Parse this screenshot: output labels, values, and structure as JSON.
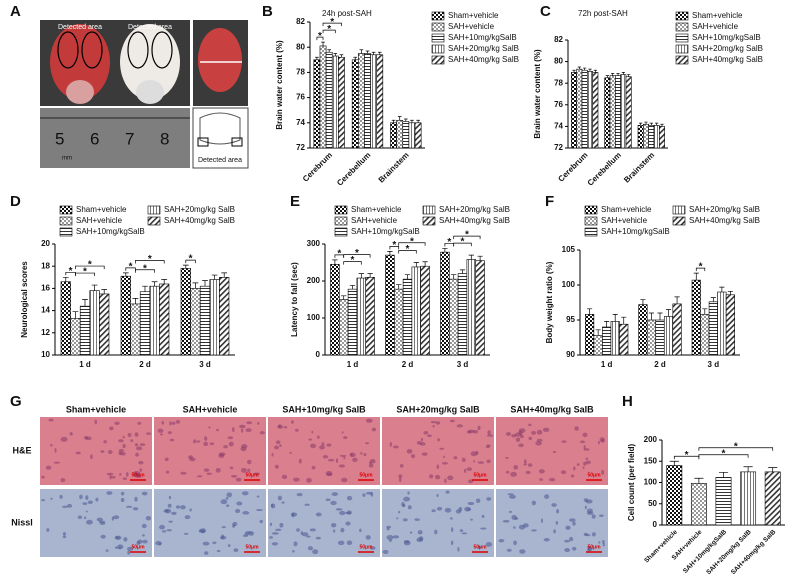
{
  "panel_a": {
    "label": "A",
    "detected_area_labels": [
      "Detected area",
      "Detected area",
      "Detected area"
    ],
    "ruler": [
      5,
      6,
      7,
      8
    ],
    "unit": "mm"
  },
  "panel_g": {
    "label": "G",
    "columns": [
      "Sham+vehicle",
      "SAH+vehicle",
      "SAH+10mg/kg SalB",
      "SAH+20mg/kg SalB",
      "SAH+40mg/kg SalB"
    ],
    "rows": [
      "H&E",
      "Nissl"
    ],
    "scale_bar": "50μm"
  },
  "chart_data": [
    {
      "type": "bar",
      "panel": "B",
      "title": "24h post-SAH",
      "y_label": "Brain water content (%)",
      "categories": [
        "Cerebrum",
        "Cerebellum",
        "Brainstem"
      ],
      "series": [
        {
          "name": "Sham+vehicle",
          "pattern": "checker-dark",
          "values": [
            79.0,
            79.0,
            74.0
          ],
          "errors": [
            0.2,
            0.2,
            0.2
          ]
        },
        {
          "name": "SAH+vehicle",
          "pattern": "checker-light",
          "values": [
            80.1,
            79.5,
            74.2
          ],
          "errors": [
            0.3,
            0.3,
            0.3
          ]
        },
        {
          "name": "SAH+10mg/kgSalB",
          "pattern": "hstripe",
          "values": [
            79.6,
            79.5,
            74.1
          ],
          "errors": [
            0.2,
            0.2,
            0.2
          ]
        },
        {
          "name": "SAH+20mg/kg SalB",
          "pattern": "vstripe",
          "values": [
            79.3,
            79.4,
            74.0
          ],
          "errors": [
            0.2,
            0.2,
            0.2
          ]
        },
        {
          "name": "SAH+40mg/kg SalB",
          "pattern": "diagonal",
          "values": [
            79.2,
            79.4,
            74.0
          ],
          "errors": [
            0.2,
            0.2,
            0.2
          ]
        }
      ],
      "ylim": [
        72,
        82
      ],
      "yticks": [
        72,
        74,
        76,
        78,
        80,
        82
      ],
      "comparisons": [
        {
          "label": "*",
          "category": "Cerebrum",
          "between": [
            "Sham+vehicle",
            "SAH+vehicle"
          ]
        },
        {
          "label": "*",
          "category": "Cerebrum",
          "between": [
            "SAH+vehicle",
            "SAH+20mg/kg SalB"
          ]
        },
        {
          "label": "*",
          "category": "Cerebrum",
          "between": [
            "SAH+vehicle",
            "SAH+40mg/kg SalB"
          ]
        }
      ]
    },
    {
      "type": "bar",
      "panel": "C",
      "title": "72h post-SAH",
      "y_label": "Brain water content (%)",
      "categories": [
        "Cerebrum",
        "Cerebellum",
        "Brainstem"
      ],
      "series": [
        {
          "name": "Sham+vehicle",
          "pattern": "checker-dark",
          "values": [
            79.0,
            78.5,
            74.1
          ],
          "errors": [
            0.2,
            0.2,
            0.2
          ]
        },
        {
          "name": "SAH+vehicle",
          "pattern": "checker-light",
          "values": [
            79.3,
            78.7,
            74.2
          ],
          "errors": [
            0.2,
            0.2,
            0.2
          ]
        },
        {
          "name": "SAH+10mg/kgSalB",
          "pattern": "hstripe",
          "values": [
            79.2,
            78.7,
            74.1
          ],
          "errors": [
            0.2,
            0.2,
            0.2
          ]
        },
        {
          "name": "SAH+20mg/kg SalB",
          "pattern": "vstripe",
          "values": [
            79.1,
            78.8,
            74.1
          ],
          "errors": [
            0.2,
            0.2,
            0.2
          ]
        },
        {
          "name": "SAH+40mg/kg SalB",
          "pattern": "diagonal",
          "values": [
            79.0,
            78.6,
            74.0
          ],
          "errors": [
            0.2,
            0.2,
            0.2
          ]
        }
      ],
      "ylim": [
        72,
        82
      ],
      "yticks": [
        72,
        74,
        76,
        78,
        80,
        82
      ],
      "comparisons": []
    },
    {
      "type": "bar",
      "panel": "D",
      "y_label": "Neurological scores",
      "categories": [
        "1 d",
        "2 d",
        "3 d"
      ],
      "series": [
        {
          "name": "Sham+vehicle",
          "pattern": "checker-dark",
          "values": [
            16.6,
            17.1,
            17.8
          ],
          "errors": [
            0.4,
            0.3,
            0.3
          ]
        },
        {
          "name": "SAH+vehicle",
          "pattern": "checker-light",
          "values": [
            13.3,
            14.6,
            16.0
          ],
          "errors": [
            0.6,
            0.5,
            0.5
          ]
        },
        {
          "name": "SAH+10mg/kgSalB",
          "pattern": "hstripe",
          "values": [
            14.4,
            15.7,
            16.2
          ],
          "errors": [
            0.6,
            0.5,
            0.5
          ]
        },
        {
          "name": "SAH+20mg/kg SalB",
          "pattern": "vstripe",
          "values": [
            15.8,
            16.2,
            16.8
          ],
          "errors": [
            0.5,
            0.4,
            0.4
          ]
        },
        {
          "name": "SAH+40mg/kg SalB",
          "pattern": "diagonal",
          "values": [
            15.5,
            16.4,
            17.0
          ],
          "errors": [
            0.4,
            0.4,
            0.4
          ]
        }
      ],
      "ylim": [
        10,
        20
      ],
      "yticks": [
        10,
        12,
        14,
        16,
        18,
        20
      ],
      "comparisons": [
        {
          "label": "*",
          "category": "1 d",
          "between": [
            "Sham+vehicle",
            "SAH+vehicle"
          ]
        },
        {
          "label": "*",
          "category": "1 d",
          "between": [
            "SAH+vehicle",
            "SAH+20mg/kg SalB"
          ]
        },
        {
          "label": "*",
          "category": "1 d",
          "between": [
            "SAH+vehicle",
            "SAH+40mg/kg SalB"
          ]
        },
        {
          "label": "*",
          "category": "2 d",
          "between": [
            "Sham+vehicle",
            "SAH+vehicle"
          ]
        },
        {
          "label": "*",
          "category": "2 d",
          "between": [
            "SAH+vehicle",
            "SAH+20mg/kg SalB"
          ]
        },
        {
          "label": "*",
          "category": "2 d",
          "between": [
            "SAH+vehicle",
            "SAH+40mg/kg SalB"
          ]
        },
        {
          "label": "*",
          "category": "3 d",
          "between": [
            "Sham+vehicle",
            "SAH+vehicle"
          ]
        }
      ]
    },
    {
      "type": "bar",
      "panel": "E",
      "y_label": "Latency to fall (sec)",
      "categories": [
        "1 d",
        "2 d",
        "3 d"
      ],
      "series": [
        {
          "name": "Sham+vehicle",
          "pattern": "checker-dark",
          "values": [
            245,
            270,
            278
          ],
          "errors": [
            12,
            10,
            10
          ]
        },
        {
          "name": "SAH+vehicle",
          "pattern": "checker-light",
          "values": [
            150,
            178,
            205
          ],
          "errors": [
            10,
            12,
            12
          ]
        },
        {
          "name": "SAH+10mg/kgSalB",
          "pattern": "hstripe",
          "values": [
            178,
            205,
            220
          ],
          "errors": [
            10,
            12,
            10
          ]
        },
        {
          "name": "SAH+20mg/kg SalB",
          "pattern": "vstripe",
          "values": [
            208,
            238,
            258
          ],
          "errors": [
            12,
            12,
            12
          ]
        },
        {
          "name": "SAH+40mg/kg SalB",
          "pattern": "diagonal",
          "values": [
            210,
            240,
            255
          ],
          "errors": [
            10,
            12,
            12
          ]
        }
      ],
      "ylim": [
        0,
        300
      ],
      "yticks": [
        0,
        100,
        200,
        300
      ],
      "comparisons": [
        {
          "label": "*",
          "category": "1 d",
          "between": [
            "Sham+vehicle",
            "SAH+vehicle"
          ]
        },
        {
          "label": "*",
          "category": "1 d",
          "between": [
            "SAH+vehicle",
            "SAH+20mg/kg SalB"
          ]
        },
        {
          "label": "*",
          "category": "1 d",
          "between": [
            "SAH+vehicle",
            "SAH+40mg/kg SalB"
          ]
        },
        {
          "label": "*",
          "category": "2 d",
          "between": [
            "Sham+vehicle",
            "SAH+vehicle"
          ]
        },
        {
          "label": "*",
          "category": "2 d",
          "between": [
            "SAH+vehicle",
            "SAH+20mg/kg SalB"
          ]
        },
        {
          "label": "*",
          "category": "2 d",
          "between": [
            "SAH+vehicle",
            "SAH+40mg/kg SalB"
          ]
        },
        {
          "label": "*",
          "category": "3 d",
          "between": [
            "Sham+vehicle",
            "SAH+vehicle"
          ]
        },
        {
          "label": "*",
          "category": "3 d",
          "between": [
            "SAH+vehicle",
            "SAH+20mg/kg SalB"
          ]
        },
        {
          "label": "*",
          "category": "3 d",
          "between": [
            "SAH+vehicle",
            "SAH+40mg/kg SalB"
          ]
        }
      ]
    },
    {
      "type": "bar",
      "panel": "F",
      "y_label": "Body weight ratio (%)",
      "categories": [
        "1 d",
        "2 d",
        "3 d"
      ],
      "series": [
        {
          "name": "Sham+vehicle",
          "pattern": "checker-dark",
          "values": [
            95.8,
            97.2,
            100.7
          ],
          "errors": [
            0.8,
            0.7,
            1.0
          ]
        },
        {
          "name": "SAH+vehicle",
          "pattern": "checker-light",
          "values": [
            92.8,
            95.0,
            95.8
          ],
          "errors": [
            0.8,
            1.0,
            0.8
          ]
        },
        {
          "name": "SAH+10mg/kgSalB",
          "pattern": "hstripe",
          "values": [
            94.0,
            95.0,
            97.6
          ],
          "errors": [
            0.8,
            1.0,
            0.6
          ]
        },
        {
          "name": "SAH+20mg/kg SalB",
          "pattern": "vstripe",
          "values": [
            94.8,
            95.5,
            99.0
          ],
          "errors": [
            1.0,
            1.0,
            0.7
          ]
        },
        {
          "name": "SAH+40mg/kg SalB",
          "pattern": "diagonal",
          "values": [
            94.4,
            97.3,
            98.6
          ],
          "errors": [
            1.0,
            1.0,
            0.5
          ]
        }
      ],
      "ylim": [
        90,
        105
      ],
      "yticks": [
        90,
        95,
        100,
        105
      ],
      "comparisons": [
        {
          "label": "*",
          "category": "3 d",
          "between": [
            "Sham+vehicle",
            "SAH+vehicle"
          ]
        }
      ]
    },
    {
      "type": "bar",
      "panel": "H",
      "y_label": "Cell count (per field)",
      "categories": [
        "Sham+vehicle",
        "SAH+vehicle",
        "SAH+10mg/kgSalB",
        "SAH+20mg/kg SalB",
        "SAH+40mg/kg SalB"
      ],
      "patterns": [
        "checker-dark",
        "checker-light",
        "hstripe",
        "vstripe",
        "diagonal"
      ],
      "values": [
        140,
        98,
        112,
        125,
        125
      ],
      "errors": [
        10,
        12,
        12,
        12,
        10
      ],
      "ylim": [
        0,
        200
      ],
      "yticks": [
        0,
        50,
        100,
        150,
        200
      ],
      "comparisons": [
        {
          "label": "*",
          "between": [
            "Sham+vehicle",
            "SAH+vehicle"
          ]
        },
        {
          "label": "*",
          "between": [
            "SAH+vehicle",
            "SAH+20mg/kg SalB"
          ]
        },
        {
          "label": "*",
          "between": [
            "SAH+vehicle",
            "SAH+40mg/kg SalB"
          ]
        }
      ]
    }
  ]
}
